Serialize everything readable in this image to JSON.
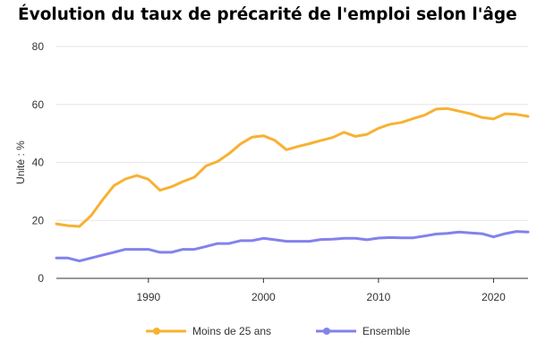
{
  "chart_data": {
    "type": "line",
    "title": "Évolution du taux de précarité de l'emploi selon l'âge",
    "xlabel": "",
    "ylabel": "Unité : %",
    "xlim": [
      1982,
      2023
    ],
    "ylim": [
      0,
      80
    ],
    "x_ticks": [
      1990,
      2000,
      2010,
      2020
    ],
    "y_ticks": [
      0,
      20,
      40,
      60,
      80
    ],
    "grid": true,
    "legend_position": "bottom",
    "x": [
      1982,
      1983,
      1984,
      1985,
      1986,
      1987,
      1988,
      1989,
      1990,
      1991,
      1992,
      1993,
      1994,
      1995,
      1996,
      1997,
      1998,
      1999,
      2000,
      2001,
      2002,
      2003,
      2004,
      2005,
      2006,
      2007,
      2008,
      2009,
      2010,
      2011,
      2012,
      2013,
      2014,
      2015,
      2016,
      2017,
      2018,
      2019,
      2020,
      2021,
      2022,
      2023
    ],
    "series": [
      {
        "name": "Moins de 25 ans",
        "color": "#F8B133",
        "values": [
          18.8,
          18.2,
          17.9,
          21.6,
          27.0,
          32.0,
          34.3,
          35.5,
          34.2,
          30.4,
          31.6,
          33.4,
          34.9,
          38.8,
          40.3,
          43.0,
          46.4,
          48.7,
          49.2,
          47.6,
          44.4,
          45.5,
          46.5,
          47.6,
          48.6,
          50.4,
          49.0,
          49.7,
          51.8,
          53.2,
          53.8,
          55.1,
          56.3,
          58.4,
          58.6,
          57.7,
          56.8,
          55.5,
          55.0,
          56.8,
          56.6,
          55.9
        ]
      },
      {
        "name": "Ensemble",
        "color": "#8382EC",
        "values": [
          7.0,
          7.0,
          6.0,
          7.0,
          8.0,
          9.0,
          10.0,
          10.0,
          10.0,
          9.0,
          9.0,
          10.0,
          10.0,
          11.0,
          12.0,
          12.0,
          13.0,
          13.0,
          13.8,
          13.3,
          12.8,
          12.8,
          12.8,
          13.4,
          13.5,
          13.8,
          13.8,
          13.3,
          13.9,
          14.1,
          14.0,
          14.0,
          14.6,
          15.3,
          15.5,
          16.0,
          15.7,
          15.4,
          14.3,
          15.4,
          16.2,
          16.0
        ]
      }
    ]
  }
}
